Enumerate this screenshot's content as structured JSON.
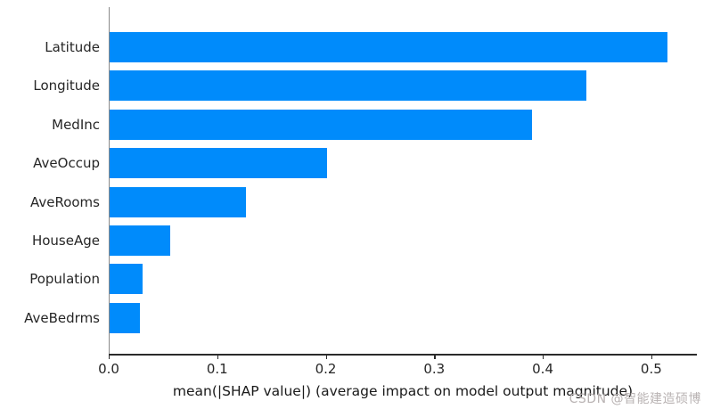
{
  "chart_data": {
    "type": "bar",
    "orientation": "horizontal",
    "categories": [
      "Latitude",
      "Longitude",
      "MedInc",
      "AveOccup",
      "AveRooms",
      "HouseAge",
      "Population",
      "AveBedrms"
    ],
    "values": [
      0.514,
      0.439,
      0.389,
      0.2,
      0.126,
      0.056,
      0.03,
      0.028
    ],
    "xlabel": "mean(|SHAP value|) (average impact on model output magnitude)",
    "ylabel": "",
    "xlim": [
      0,
      0.542
    ],
    "xticks": [
      0.0,
      0.1,
      0.2,
      0.3,
      0.4,
      0.5
    ],
    "xtick_labels": [
      "0.0",
      "0.1",
      "0.2",
      "0.3",
      "0.4",
      "0.5"
    ],
    "bar_color": "#008bfb",
    "grid": false,
    "legend_position": "none"
  },
  "watermark": {
    "text": "CSDN @智能建造硕博",
    "color": "#b9b3b3"
  }
}
